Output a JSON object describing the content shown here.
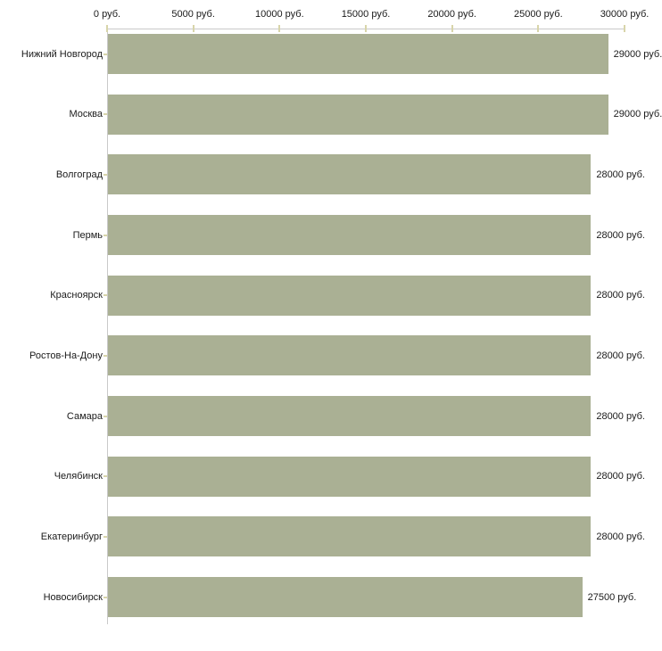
{
  "chart_data": {
    "type": "bar",
    "orientation": "horizontal",
    "title": "",
    "categories": [
      "Нижний Новгород",
      "Москва",
      "Волгоград",
      "Пермь",
      "Красноярск",
      "Ростов-На-Дону",
      "Самара",
      "Челябинск",
      "Екатеринбург",
      "Новосибирск"
    ],
    "values": [
      29000,
      29000,
      28000,
      28000,
      28000,
      28000,
      28000,
      28000,
      28000,
      27500
    ],
    "value_labels": [
      "29000 руб.",
      "29000 руб.",
      "28000 руб.",
      "28000 руб.",
      "28000 руб.",
      "28000 руб.",
      "28000 руб.",
      "28000 руб.",
      "28000 руб.",
      "27500 руб."
    ],
    "x_axis": {
      "position": "top",
      "min": 0,
      "max": 30000,
      "ticks": [
        0,
        5000,
        10000,
        15000,
        20000,
        25000,
        30000
      ],
      "tick_labels": [
        "0 руб.",
        "5000 руб.",
        "10000 руб.",
        "15000 руб.",
        "20000 руб.",
        "25000 руб.",
        "30000 руб."
      ]
    },
    "legend": "none",
    "grid": "off"
  },
  "colors": {
    "background": "#ffffff",
    "bar_fill": "#aab094",
    "axis_line": "#c9c9c9",
    "tick_mark": "#d8d5aa",
    "label_text": "#1a1a1a"
  }
}
